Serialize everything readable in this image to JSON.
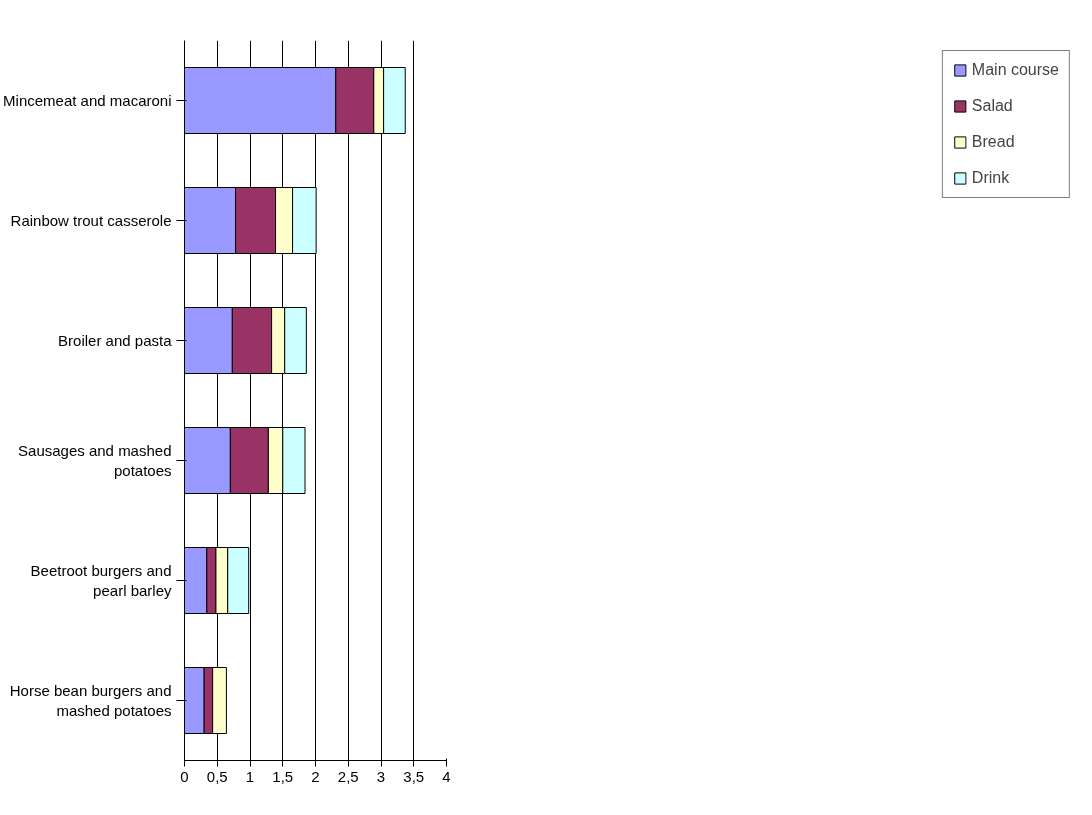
{
  "chart_data": {
    "type": "bar",
    "orientation": "horizontal",
    "stacked": true,
    "categories": [
      "Mincemeat and macaroni",
      "Rainbow trout casserole",
      "Broiler and pasta",
      "Sausages and mashed potatoes",
      "Beetroot burgers and pearl barley",
      "Horse bean burgers and mashed potatoes"
    ],
    "series": [
      {
        "name": "Main course",
        "color": "#9999ff",
        "values": [
          2.31,
          0.78,
          0.73,
          0.7,
          0.34,
          0.3
        ]
      },
      {
        "name": "Salad",
        "color": "#993366",
        "values": [
          0.58,
          0.61,
          0.6,
          0.58,
          0.14,
          0.13
        ]
      },
      {
        "name": "Bread",
        "color": "#ffffcc",
        "values": [
          0.15,
          0.26,
          0.2,
          0.22,
          0.18,
          0.21
        ]
      },
      {
        "name": "Drink",
        "color": "#ccffff",
        "values": [
          0.33,
          0.36,
          0.33,
          0.34,
          0.32,
          null
        ]
      }
    ],
    "xlim": [
      0,
      4
    ],
    "xticks": [
      0,
      {
        "value": 0.5,
        "label": "0,5"
      },
      1,
      {
        "value": 1.5,
        "label": "1,5"
      },
      2,
      {
        "value": 2.5,
        "label": "2,5"
      },
      3,
      {
        "value": 3.5,
        "label": "3,5"
      },
      4
    ],
    "grid": "x",
    "legend": "right"
  }
}
